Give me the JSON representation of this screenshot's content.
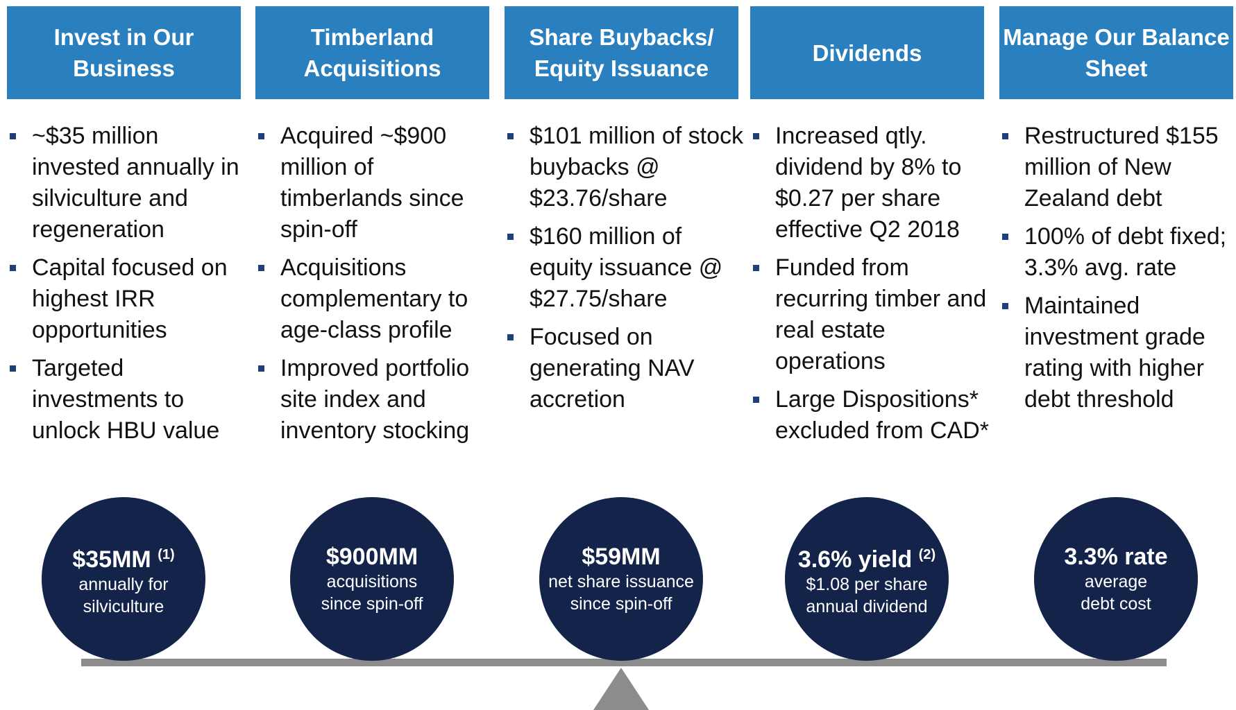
{
  "columns": [
    {
      "title": "Invest in Our Business",
      "bullets": [
        "~$35 million invested annually in silviculture and regeneration",
        "Capital focused on highest IRR opportunities",
        "Targeted investments to unlock HBU value"
      ],
      "circle": {
        "headline": "$35MM",
        "note": "(1)",
        "lines": [
          "annually for",
          "silviculture"
        ]
      }
    },
    {
      "title": "Timberland Acquisitions",
      "bullets": [
        "Acquired ~$900 million of timberlands since spin-off",
        "Acquisitions complementary to age-class profile",
        "Improved portfolio site index and inventory stocking"
      ],
      "circle": {
        "headline": "$900MM",
        "lines": [
          "acquisitions",
          "since spin-off"
        ]
      }
    },
    {
      "title": "Share Buybacks/ Equity Issuance",
      "bullets": [
        "$101 million of stock buybacks @ $23.76/share",
        "$160 million of equity issuance @ $27.75/share",
        "Focused on generating NAV accretion"
      ],
      "circle": {
        "headline": "$59MM",
        "lines": [
          "net share issuance",
          "since spin-off"
        ]
      }
    },
    {
      "title": "Dividends",
      "bullets": [
        "Increased qtly. dividend by 8% to $0.27 per share effective Q2 2018",
        "Funded from recurring timber and real estate operations",
        "Large Dispositions* excluded from CAD*"
      ],
      "circle": {
        "headline": "3.6% yield",
        "note": "(2)",
        "lines": [
          "$1.08 per share",
          "annual dividend"
        ]
      }
    },
    {
      "title": "Manage Our Balance Sheet",
      "bullets": [
        "Restructured $155 million of New Zealand debt",
        "100% of debt fixed; 3.3% avg. rate",
        "Maintained investment grade rating with higher debt threshold"
      ],
      "circle": {
        "headline": "3.3% rate",
        "lines": [
          "average",
          "debt cost"
        ]
      }
    }
  ]
}
